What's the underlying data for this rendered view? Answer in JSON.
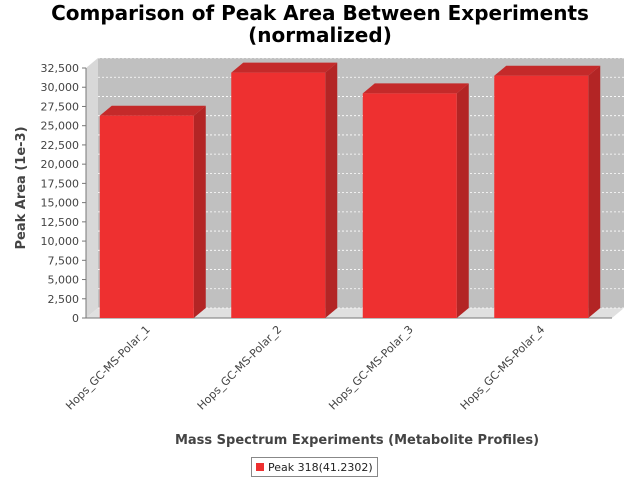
{
  "chart_data": {
    "type": "bar",
    "title_line1": "Comparison of Peak Area Between Experiments",
    "title_line2": "(normalized)",
    "xlabel": "Mass Spectrum Experiments (Metabolite Profiles)",
    "ylabel": "Peak Area (1e-3)",
    "categories": [
      "Hops_GC-MS-Polar_1",
      "Hops_GC-MS-Polar_2",
      "Hops_GC-MS-Polar_3",
      "Hops_GC-MS-Polar_4"
    ],
    "series": [
      {
        "name": "Peak 318(41.2302)",
        "values": [
          26300,
          31900,
          29200,
          31500
        ]
      }
    ],
    "y_ticks": [
      "0",
      "2,500",
      "5,000",
      "7,500",
      "10,000",
      "12,500",
      "15,000",
      "17,500",
      "20,000",
      "22,500",
      "25,000",
      "27,500",
      "30,000",
      "32,500"
    ],
    "ylim": [
      0,
      32500
    ],
    "grid": true,
    "legend_position": "bottom",
    "colors": {
      "bar": "#ee3030",
      "bar_top": "#c42a2a",
      "bar_side": "#b32525",
      "plot_bg": "#c0c0c0",
      "plot_floor": "#e0e0e0"
    }
  }
}
